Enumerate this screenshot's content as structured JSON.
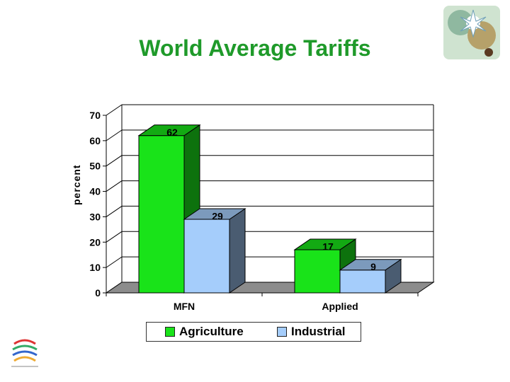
{
  "slide": {
    "title": "World Average Tariffs"
  },
  "chart_data": {
    "type": "bar",
    "title": "",
    "xlabel": "",
    "ylabel": "percent",
    "categories": [
      "MFN",
      "Applied"
    ],
    "series": [
      {
        "name": "Agriculture",
        "values": [
          62,
          17
        ],
        "color": "#19e319"
      },
      {
        "name": "Industrial",
        "values": [
          29,
          9
        ],
        "color": "#a5cdfb"
      }
    ],
    "ylim": [
      0,
      70
    ],
    "yticks": [
      0,
      10,
      20,
      30,
      40,
      50,
      60,
      70
    ],
    "grid": true,
    "legend": "bottom",
    "data_labels": true,
    "three_d": true
  },
  "icons": {
    "corner_art": "floral-collage-icon",
    "logo": "wto-logo-icon"
  }
}
